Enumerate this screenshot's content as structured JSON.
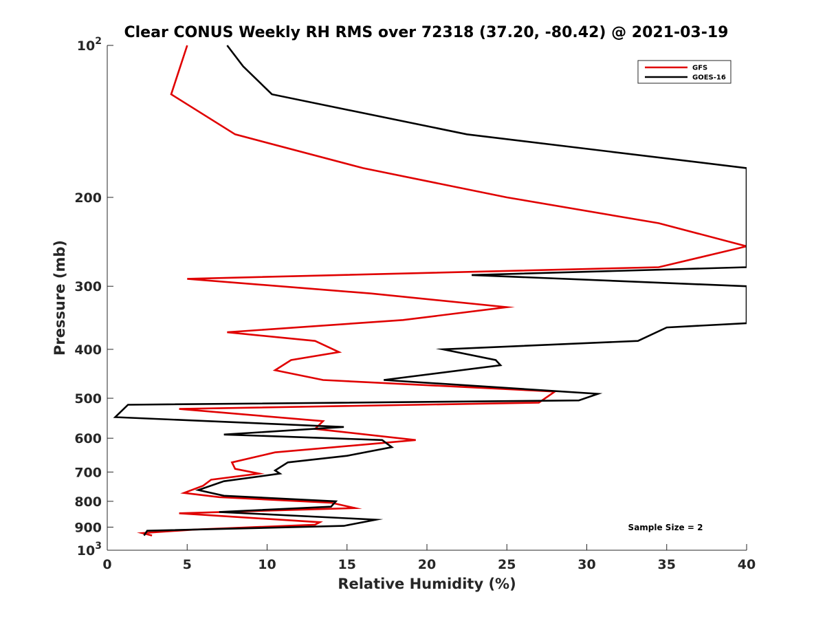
{
  "chart_data": {
    "type": "line",
    "title": "Clear CONUS Weekly RH RMS over 72318 (37.20, -80.42) @ 2021-03-19",
    "xlabel": "Relative Humidity (%)",
    "ylabel": "Pressure (mb)",
    "xlim": [
      0,
      40
    ],
    "ylim": [
      100,
      1000
    ],
    "y_scale": "log",
    "y_direction": "reversed",
    "x_ticks": [
      "0",
      "5",
      "10",
      "15",
      "20",
      "25",
      "30",
      "35",
      "40"
    ],
    "y_ticks": [
      {
        "value": 100,
        "base": "10",
        "exp": "2"
      },
      {
        "value": 200,
        "label": "200"
      },
      {
        "value": 300,
        "label": "300"
      },
      {
        "value": 400,
        "label": "400"
      },
      {
        "value": 500,
        "label": "500"
      },
      {
        "value": 600,
        "label": "600"
      },
      {
        "value": 700,
        "label": "700"
      },
      {
        "value": 800,
        "label": "800"
      },
      {
        "value": 900,
        "label": "900"
      },
      {
        "value": 1000,
        "base": "10",
        "exp": "3"
      }
    ],
    "legend_position": "top-right",
    "annotation": "Sample Size = 2",
    "series": [
      {
        "name": "GFS",
        "color": "#e00000",
        "points": [
          [
            5.0,
            100
          ],
          [
            4.0,
            125
          ],
          [
            8.0,
            150
          ],
          [
            16.0,
            175
          ],
          [
            25.0,
            200
          ],
          [
            34.5,
            225
          ],
          [
            40.0,
            250
          ],
          [
            34.5,
            275
          ],
          [
            5.0,
            290
          ],
          [
            16.5,
            310
          ],
          [
            25.0,
            330
          ],
          [
            18.5,
            350
          ],
          [
            7.5,
            370
          ],
          [
            13.0,
            385
          ],
          [
            14.5,
            405
          ],
          [
            11.5,
            420
          ],
          [
            10.5,
            440
          ],
          [
            13.5,
            460
          ],
          [
            28.0,
            485
          ],
          [
            27.0,
            510
          ],
          [
            4.5,
            525
          ],
          [
            13.5,
            555
          ],
          [
            13.0,
            575
          ],
          [
            19.3,
            605
          ],
          [
            10.5,
            640
          ],
          [
            7.8,
            670
          ],
          [
            8.0,
            690
          ],
          [
            9.5,
            705
          ],
          [
            6.5,
            725
          ],
          [
            6.0,
            745
          ],
          [
            4.8,
            770
          ],
          [
            7.0,
            785
          ],
          [
            14.0,
            805
          ],
          [
            15.5,
            825
          ],
          [
            4.5,
            845
          ],
          [
            13.3,
            880
          ],
          [
            13.0,
            890
          ],
          [
            5.5,
            910
          ],
          [
            2.2,
            925
          ],
          [
            2.8,
            935
          ]
        ]
      },
      {
        "name": "GOES-16",
        "color": "#000000",
        "points": [
          [
            7.5,
            100
          ],
          [
            8.5,
            110
          ],
          [
            10.3,
            125
          ],
          [
            22.5,
            150
          ],
          [
            40.0,
            175
          ],
          [
            40.0,
            275
          ],
          [
            22.8,
            285
          ],
          [
            40.0,
            300
          ],
          [
            40.0,
            355
          ],
          [
            35.0,
            362
          ],
          [
            33.2,
            385
          ],
          [
            21.0,
            400
          ],
          [
            24.3,
            420
          ],
          [
            24.6,
            430
          ],
          [
            17.3,
            460
          ],
          [
            30.7,
            490
          ],
          [
            29.5,
            505
          ],
          [
            1.3,
            515
          ],
          [
            0.5,
            545
          ],
          [
            14.8,
            570
          ],
          [
            7.3,
            590
          ],
          [
            17.2,
            605
          ],
          [
            17.8,
            625
          ],
          [
            15.0,
            650
          ],
          [
            11.3,
            670
          ],
          [
            10.5,
            695
          ],
          [
            10.8,
            705
          ],
          [
            7.3,
            730
          ],
          [
            5.7,
            760
          ],
          [
            7.3,
            780
          ],
          [
            14.3,
            800
          ],
          [
            14.0,
            820
          ],
          [
            7.0,
            840
          ],
          [
            16.8,
            870
          ],
          [
            14.8,
            895
          ],
          [
            2.5,
            915
          ],
          [
            2.3,
            935
          ]
        ]
      }
    ]
  }
}
